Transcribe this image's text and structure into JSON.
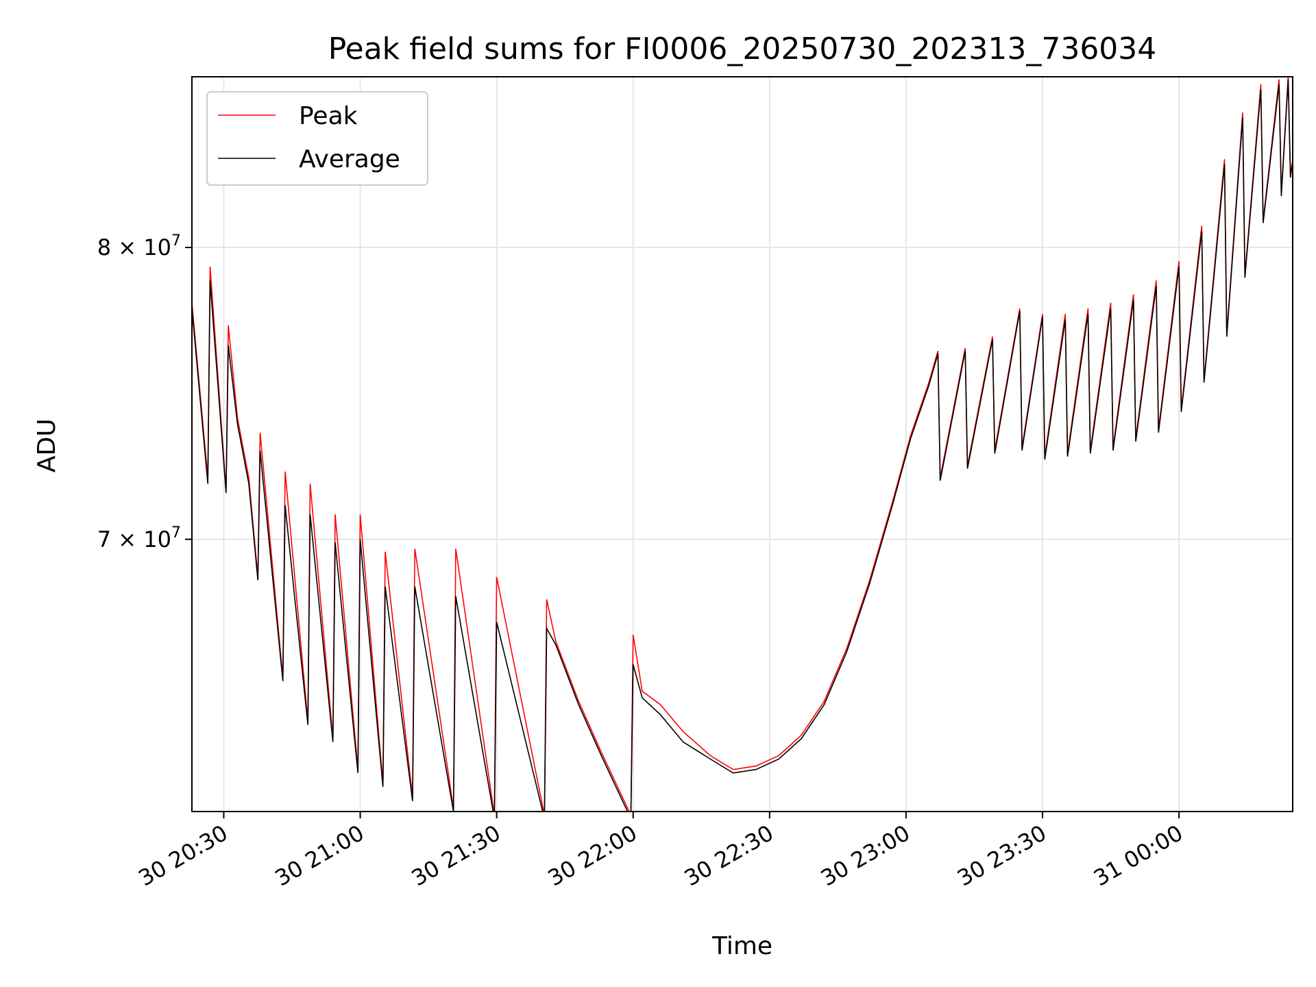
{
  "chart_data": {
    "type": "line",
    "title": "Peak field sums for FI0006_20250730_202313_736034",
    "xlabel": "Time",
    "ylabel": "ADU",
    "y_scale": "log",
    "grid": true,
    "legend_position": "top-left",
    "colors": {
      "peak": "#ff0000",
      "average": "#000000",
      "grid": "#e6e6e6"
    },
    "x_ticks": [
      "30 20:30",
      "30 21:00",
      "30 21:30",
      "30 22:00",
      "30 22:30",
      "30 23:00",
      "30 23:30",
      "31 00:00"
    ],
    "x_tick_minutes": [
      30,
      60,
      90,
      120,
      150,
      180,
      210,
      240
    ],
    "xlim_minutes": [
      23,
      265
    ],
    "y_ticks": [
      {
        "value": 70000000,
        "mantissa": "7",
        "base": "10",
        "exp": "7"
      },
      {
        "value": 80000000,
        "mantissa": "8",
        "base": "10",
        "exp": "7"
      }
    ],
    "ylim": [
      61800000,
      86500000
    ],
    "series": [
      {
        "name": "Peak",
        "color": "#ff0000",
        "points": [
          [
            23,
            78000000
          ],
          [
            26.5,
            72000000
          ],
          [
            27,
            79300000
          ],
          [
            30.5,
            71600000
          ],
          [
            31,
            77200000
          ],
          [
            33,
            74000000
          ],
          [
            35.5,
            72000000
          ],
          [
            37.5,
            68800000
          ],
          [
            38,
            73500000
          ],
          [
            43,
            65700000
          ],
          [
            43.5,
            72200000
          ],
          [
            48.5,
            64400000
          ],
          [
            49,
            71800000
          ],
          [
            54,
            63900000
          ],
          [
            54.5,
            70800000
          ],
          [
            59.5,
            63000000
          ],
          [
            60,
            70800000
          ],
          [
            65,
            62600000
          ],
          [
            65.5,
            69600000
          ],
          [
            71.5,
            62200000
          ],
          [
            72,
            69700000
          ],
          [
            80.5,
            61900000
          ],
          [
            81,
            69700000
          ],
          [
            89.5,
            61700000
          ],
          [
            90,
            68800000
          ],
          [
            100.5,
            61700000
          ],
          [
            101,
            68100000
          ],
          [
            103,
            66800000
          ],
          [
            108,
            65000000
          ],
          [
            113,
            63500000
          ],
          [
            119.5,
            61700000
          ],
          [
            120,
            67000000
          ],
          [
            122,
            65300000
          ],
          [
            126,
            64900000
          ],
          [
            131,
            64100000
          ],
          [
            137,
            63400000
          ],
          [
            142,
            63000000
          ],
          [
            147,
            63100000
          ],
          [
            152,
            63400000
          ],
          [
            157,
            64000000
          ],
          [
            162,
            65000000
          ],
          [
            167,
            66600000
          ],
          [
            172,
            68700000
          ],
          [
            177,
            71200000
          ],
          [
            181,
            73400000
          ],
          [
            185,
            75200000
          ],
          [
            187,
            76300000
          ],
          [
            187.5,
            72000000
          ],
          [
            193,
            76400000
          ],
          [
            193.5,
            72400000
          ],
          [
            199,
            76800000
          ],
          [
            199.5,
            72900000
          ],
          [
            205,
            77800000
          ],
          [
            205.5,
            73000000
          ],
          [
            210,
            77600000
          ],
          [
            210.5,
            72700000
          ],
          [
            215,
            77600000
          ],
          [
            215.5,
            72800000
          ],
          [
            220,
            77800000
          ],
          [
            220.5,
            72900000
          ],
          [
            225,
            78000000
          ],
          [
            225.5,
            73000000
          ],
          [
            230,
            78300000
          ],
          [
            230.5,
            73300000
          ],
          [
            235,
            78800000
          ],
          [
            235.5,
            73600000
          ],
          [
            240,
            79500000
          ],
          [
            240.5,
            74300000
          ],
          [
            245,
            80800000
          ],
          [
            245.5,
            75300000
          ],
          [
            250,
            83300000
          ],
          [
            250.5,
            76900000
          ],
          [
            254,
            85100000
          ],
          [
            254.5,
            79000000
          ],
          [
            258,
            86200000
          ],
          [
            258.5,
            81000000
          ],
          [
            262,
            86400000
          ],
          [
            262.5,
            82000000
          ],
          [
            264,
            86500000
          ],
          [
            264.5,
            82700000
          ],
          [
            265,
            83300000
          ]
        ]
      },
      {
        "name": "Average",
        "color": "#000000",
        "points": [
          [
            23,
            77800000
          ],
          [
            26.5,
            71800000
          ],
          [
            27,
            78800000
          ],
          [
            30.5,
            71500000
          ],
          [
            31,
            76500000
          ],
          [
            33,
            73800000
          ],
          [
            35.5,
            71800000
          ],
          [
            37.5,
            68700000
          ],
          [
            38,
            72900000
          ],
          [
            43,
            65600000
          ],
          [
            43.5,
            71100000
          ],
          [
            48.5,
            64300000
          ],
          [
            49,
            70800000
          ],
          [
            54,
            63800000
          ],
          [
            54.5,
            69900000
          ],
          [
            59.5,
            62900000
          ],
          [
            60,
            70000000
          ],
          [
            65,
            62500000
          ],
          [
            65.5,
            68500000
          ],
          [
            71.5,
            62100000
          ],
          [
            72,
            68500000
          ],
          [
            80.5,
            61800000
          ],
          [
            81,
            68200000
          ],
          [
            89.5,
            61600000
          ],
          [
            90,
            67400000
          ],
          [
            100.5,
            61600000
          ],
          [
            101,
            67200000
          ],
          [
            103,
            66700000
          ],
          [
            108,
            64900000
          ],
          [
            113,
            63400000
          ],
          [
            119.5,
            61600000
          ],
          [
            120,
            66100000
          ],
          [
            122,
            65100000
          ],
          [
            126,
            64600000
          ],
          [
            131,
            63800000
          ],
          [
            137,
            63300000
          ],
          [
            142,
            62900000
          ],
          [
            147,
            63000000
          ],
          [
            152,
            63300000
          ],
          [
            157,
            63900000
          ],
          [
            162,
            64900000
          ],
          [
            167,
            66500000
          ],
          [
            172,
            68600000
          ],
          [
            177,
            71100000
          ],
          [
            181,
            73300000
          ],
          [
            185,
            75100000
          ],
          [
            187,
            76200000
          ],
          [
            187.5,
            71900000
          ],
          [
            193,
            76300000
          ],
          [
            193.5,
            72300000
          ],
          [
            199,
            76700000
          ],
          [
            199.5,
            72800000
          ],
          [
            205,
            77700000
          ],
          [
            205.5,
            72900000
          ],
          [
            210,
            77500000
          ],
          [
            210.5,
            72600000
          ],
          [
            215,
            77400000
          ],
          [
            215.5,
            72700000
          ],
          [
            220,
            77600000
          ],
          [
            220.5,
            72800000
          ],
          [
            225,
            77800000
          ],
          [
            225.5,
            72900000
          ],
          [
            230,
            78100000
          ],
          [
            230.5,
            73200000
          ],
          [
            235,
            78600000
          ],
          [
            235.5,
            73500000
          ],
          [
            240,
            79300000
          ],
          [
            240.5,
            74200000
          ],
          [
            245,
            80600000
          ],
          [
            245.5,
            75200000
          ],
          [
            250,
            83100000
          ],
          [
            250.5,
            76800000
          ],
          [
            254,
            84900000
          ],
          [
            254.5,
            78900000
          ],
          [
            258,
            86000000
          ],
          [
            258.5,
            80900000
          ],
          [
            262,
            86200000
          ],
          [
            262.5,
            81900000
          ],
          [
            264,
            86400000
          ],
          [
            264.5,
            82600000
          ],
          [
            265,
            83200000
          ]
        ]
      }
    ]
  }
}
